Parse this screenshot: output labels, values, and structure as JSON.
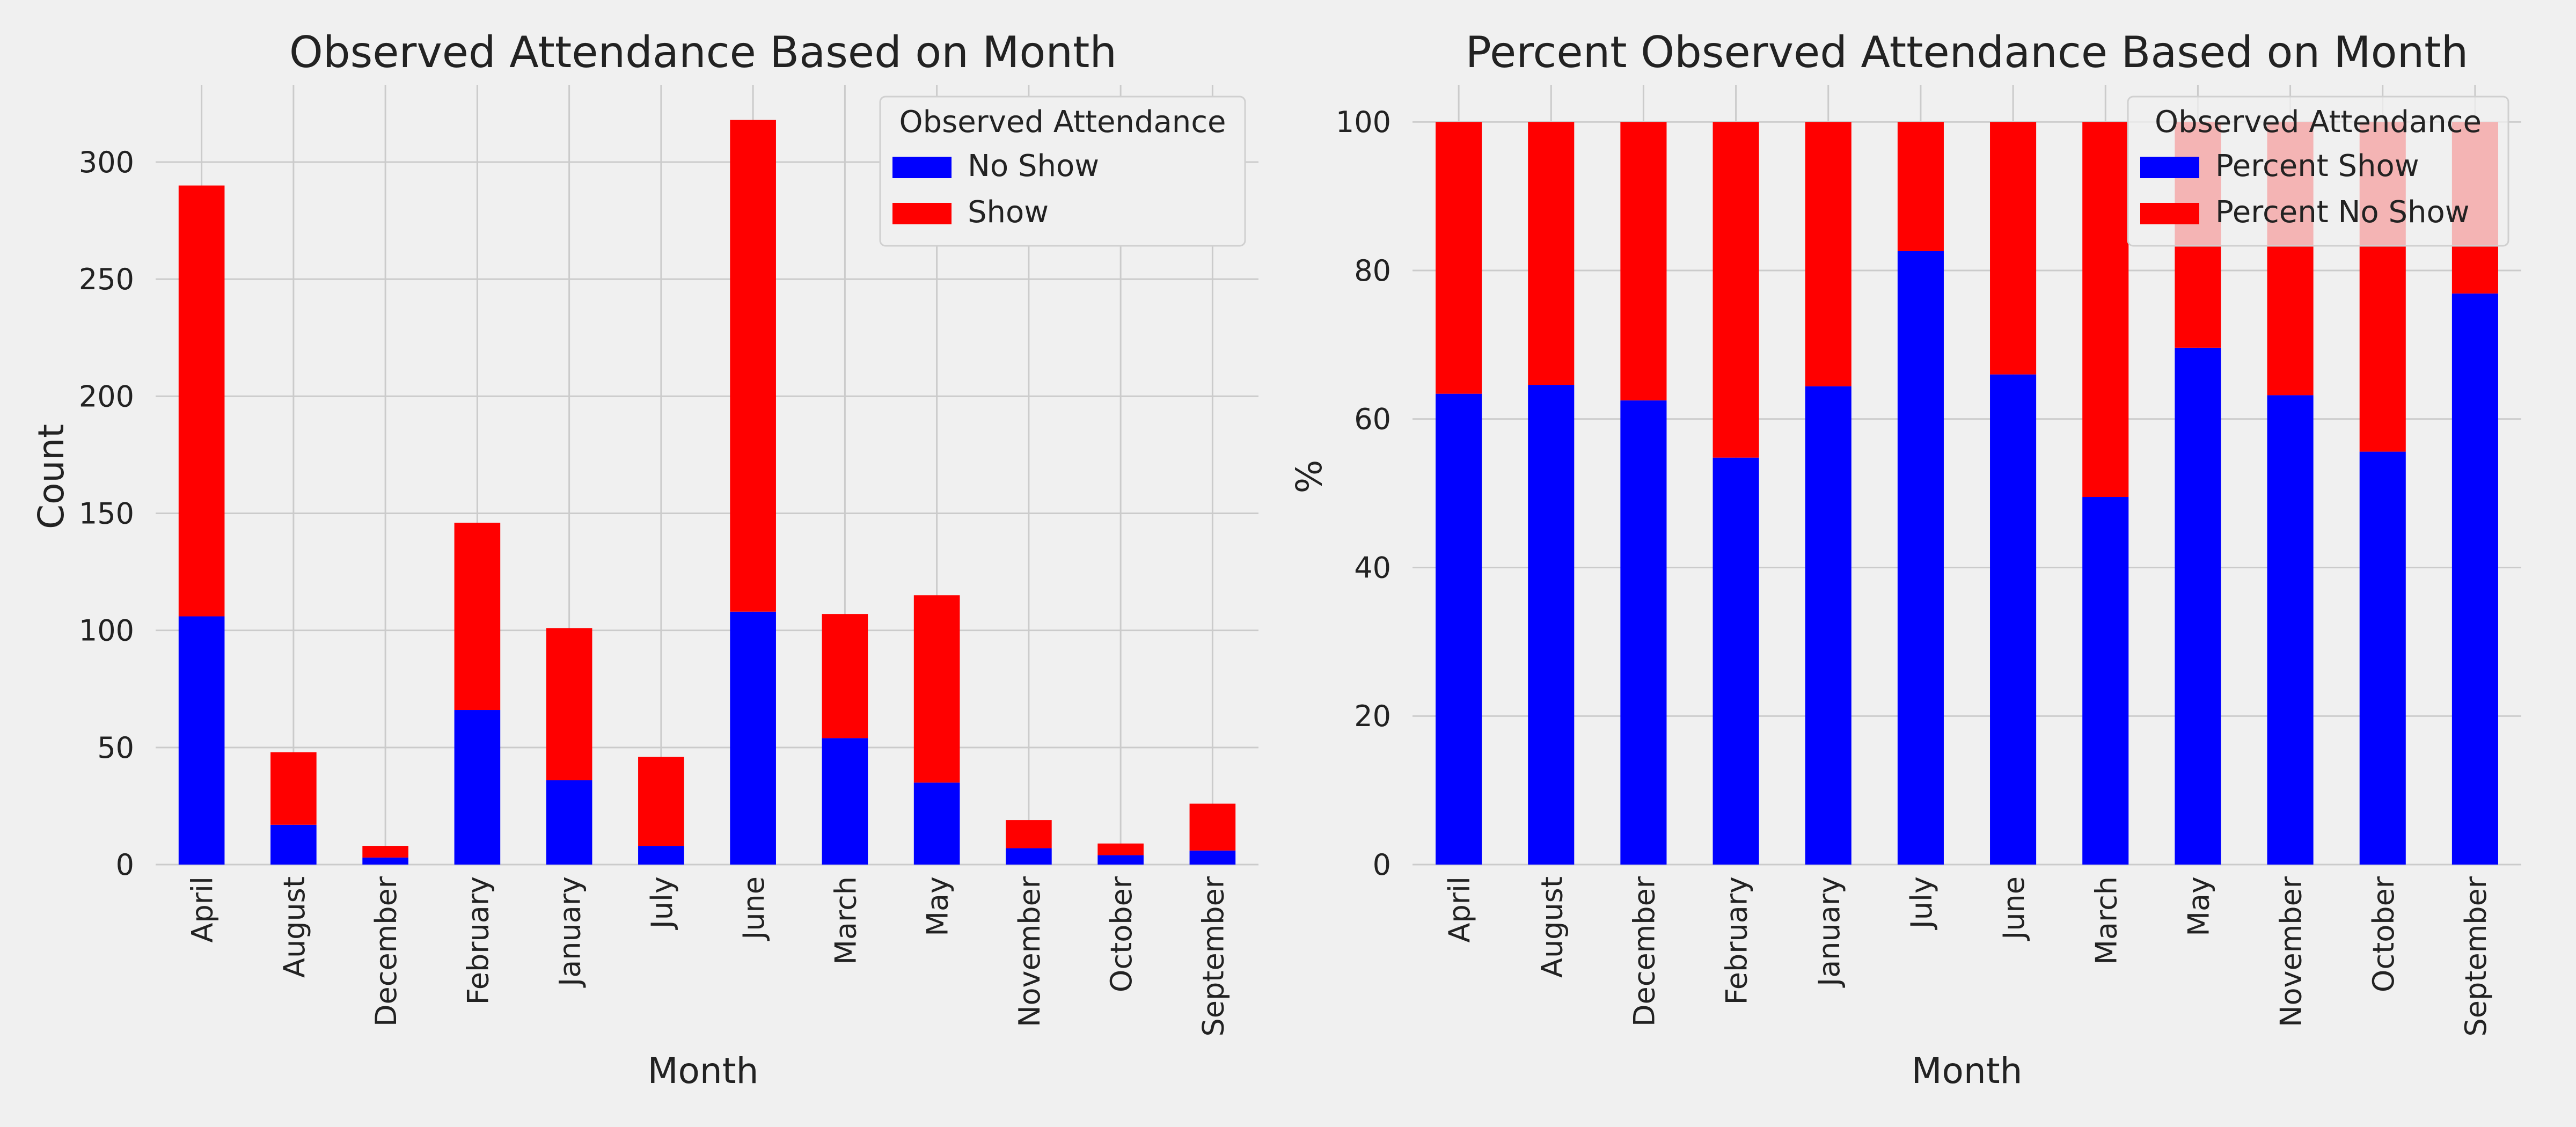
{
  "chart_data": [
    {
      "type": "bar",
      "stacked": true,
      "title": "Observed Attendance Based on Month",
      "xlabel": "Month",
      "ylabel": "Count",
      "ylim": [
        0,
        333
      ],
      "yticks": [
        0,
        50,
        100,
        150,
        200,
        250,
        300
      ],
      "grid": true,
      "legend": {
        "title": "Observed Attendance",
        "placement": "top-right"
      },
      "categories": [
        "April",
        "August",
        "December",
        "February",
        "January",
        "July",
        "June",
        "March",
        "May",
        "November",
        "October",
        "September"
      ],
      "series": [
        {
          "name": "No Show",
          "color": "#0000ff",
          "values": [
            106,
            17,
            3,
            66,
            36,
            8,
            108,
            54,
            35,
            7,
            4,
            6
          ]
        },
        {
          "name": "Show",
          "color": "#ff0000",
          "values": [
            184,
            31,
            5,
            80,
            65,
            38,
            210,
            53,
            80,
            12,
            5,
            20
          ]
        }
      ]
    },
    {
      "type": "bar",
      "stacked": true,
      "title": "Percent Observed Attendance Based on Month",
      "xlabel": "Month",
      "ylabel": "%",
      "ylim": [
        0,
        105
      ],
      "yticks": [
        0,
        20,
        40,
        60,
        80,
        100
      ],
      "grid": true,
      "legend": {
        "title": "Observed Attendance",
        "placement": "top-right"
      },
      "categories": [
        "April",
        "August",
        "December",
        "February",
        "January",
        "July",
        "June",
        "March",
        "May",
        "November",
        "October",
        "September"
      ],
      "series": [
        {
          "name": "Percent Show",
          "color": "#0000ff",
          "values": [
            63.4,
            64.6,
            62.5,
            54.8,
            64.4,
            82.6,
            66.0,
            49.5,
            69.6,
            63.2,
            55.6,
            76.9
          ]
        },
        {
          "name": "Percent No Show",
          "color": "#ff0000",
          "values": [
            36.6,
            35.4,
            37.5,
            45.2,
            35.6,
            17.4,
            34.0,
            50.5,
            30.4,
            36.8,
            44.4,
            23.1
          ]
        }
      ]
    }
  ]
}
